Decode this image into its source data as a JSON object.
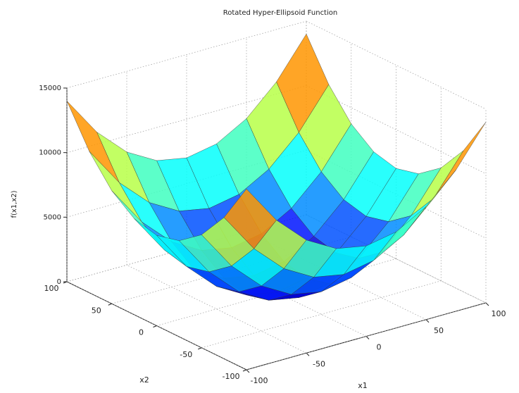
{
  "chart_data": {
    "type": "surface",
    "title": "Rotated Hyper-Ellipsoid Function",
    "xlabel": "x1",
    "ylabel": "x2",
    "zlabel": "f(x1,x2)",
    "x": [
      -100,
      -75,
      -50,
      -25,
      0,
      25,
      50,
      75,
      100
    ],
    "y": [
      -100,
      -75,
      -50,
      -25,
      0,
      25,
      50,
      75,
      100
    ],
    "z": [
      [
        14000,
        10940,
        8750,
        7440,
        7000,
        7440,
        8750,
        10940,
        14000
      ],
      [
        10940,
        7880,
        5690,
        4380,
        3940,
        4380,
        5690,
        7880,
        10940
      ],
      [
        8750,
        5690,
        3500,
        2190,
        1750,
        2190,
        3500,
        5690,
        8750
      ],
      [
        7440,
        4380,
        2190,
        880,
        440,
        880,
        2190,
        4380,
        7440
      ],
      [
        7000,
        3940,
        1750,
        440,
        0,
        440,
        1750,
        3940,
        7000
      ],
      [
        7440,
        4380,
        2190,
        880,
        440,
        880,
        2190,
        4380,
        7440
      ],
      [
        8750,
        5690,
        3500,
        2190,
        1750,
        2190,
        3500,
        5690,
        8750
      ],
      [
        10940,
        7880,
        5690,
        4380,
        3940,
        4380,
        5690,
        7880,
        10940
      ],
      [
        14000,
        10940,
        8750,
        7440,
        7000,
        7440,
        8750,
        10940,
        14000
      ]
    ],
    "xlim": [
      -100,
      100
    ],
    "ylim": [
      -100,
      100
    ],
    "zlim": [
      0,
      15000
    ],
    "xticks": [
      -100,
      -50,
      0,
      50,
      100
    ],
    "yticks": [
      -100,
      -50,
      0,
      50,
      100
    ],
    "zticks": [
      0,
      5000,
      10000,
      15000
    ],
    "colormap": "jet",
    "grid": true
  }
}
